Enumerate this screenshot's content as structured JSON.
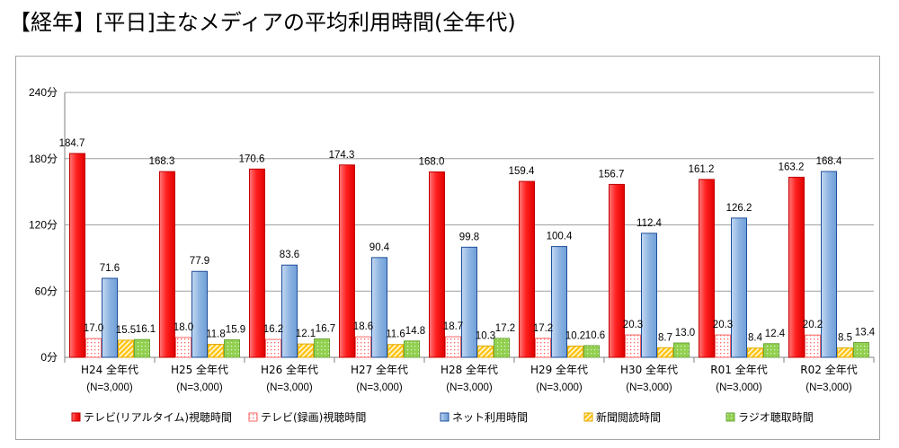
{
  "title": "【経年】[平日]主なメディアの平均利用時間(全年代)",
  "chart_data": {
    "type": "bar",
    "categories": [
      "H24 全年代",
      "H25 全年代",
      "H26 全年代",
      "H27 全年代",
      "H28 全年代",
      "H29 全年代",
      "H30 全年代",
      "R01 全年代",
      "R02 全年代"
    ],
    "category_sublabels": [
      "(N=3,000)",
      "(N=3,000)",
      "(N=3,000)",
      "(N=3,000)",
      "(N=3,000)",
      "(N=3,000)",
      "(N=3,000)",
      "(N=3,000)",
      "(N=3,000)"
    ],
    "series": [
      {
        "name": "テレビ(リアルタイム)視聴時間",
        "color": "#ff2b2b",
        "pattern": "solid-red",
        "values": [
          184.7,
          168.3,
          170.6,
          174.3,
          168.0,
          159.4,
          156.7,
          161.2,
          163.2
        ]
      },
      {
        "name": "テレビ(録画)視聴時間",
        "color": "#ff6666",
        "pattern": "dotted-white",
        "values": [
          17.0,
          18.0,
          16.2,
          18.6,
          18.7,
          17.2,
          20.3,
          20.3,
          20.2
        ]
      },
      {
        "name": "ネット利用時間",
        "color": "#8db4e2",
        "pattern": "solid-blue",
        "values": [
          71.6,
          77.9,
          83.6,
          90.4,
          99.8,
          100.4,
          112.4,
          126.2,
          168.4
        ]
      },
      {
        "name": "新聞閲読時間",
        "color": "#ffc000",
        "pattern": "striped-yellow",
        "values": [
          15.5,
          11.8,
          12.1,
          11.6,
          10.3,
          10.2,
          8.7,
          8.4,
          8.5
        ]
      },
      {
        "name": "ラジオ聴取時間",
        "color": "#92d050",
        "pattern": "dotted-green",
        "values": [
          16.1,
          15.9,
          16.7,
          14.8,
          17.2,
          10.6,
          13.0,
          12.4,
          13.4
        ]
      }
    ],
    "ylim": [
      0,
      240
    ],
    "yticks": [
      "0分",
      "60分",
      "120分",
      "180分",
      "240分"
    ],
    "ytick_values": [
      0,
      60,
      120,
      180,
      240
    ],
    "grid": true,
    "legend_position": "bottom"
  }
}
